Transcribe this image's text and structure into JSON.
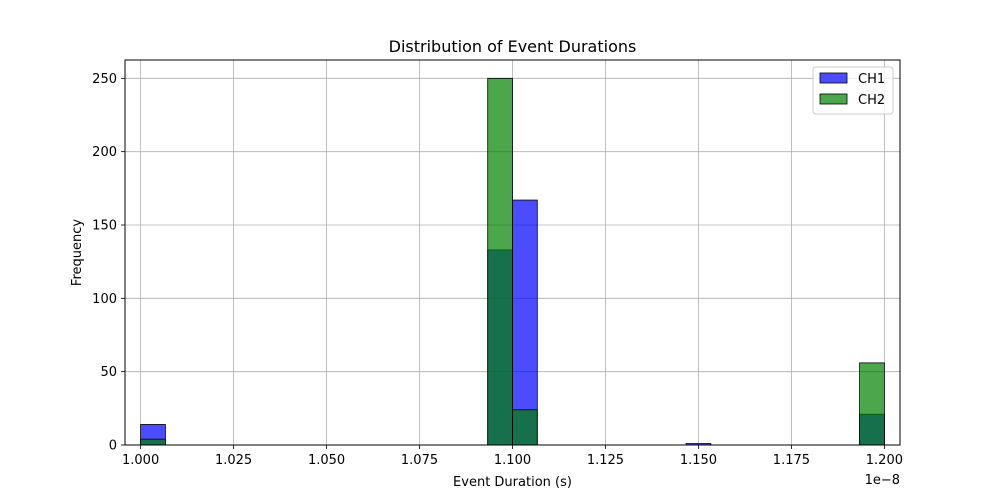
{
  "chart_data": {
    "type": "bar",
    "title": "Distribution of Event Durations",
    "xlabel": "Event Duration (s)",
    "ylabel": "Frequency",
    "x_offset_label": "1e−8",
    "xlim": [
      0.9958,
      1.2042
    ],
    "ylim": [
      0,
      262.5
    ],
    "x_ticks": [
      1.0,
      1.025,
      1.05,
      1.075,
      1.1,
      1.125,
      1.15,
      1.175,
      1.2
    ],
    "x_tick_labels": [
      "1.000",
      "1.025",
      "1.050",
      "1.075",
      "1.100",
      "1.125",
      "1.150",
      "1.175",
      "1.200"
    ],
    "y_ticks": [
      0,
      50,
      100,
      150,
      200,
      250
    ],
    "y_tick_labels": [
      "0",
      "50",
      "100",
      "150",
      "200",
      "250"
    ],
    "grid": true,
    "legend_position": "top-right",
    "series": [
      {
        "name": "CH1",
        "color": "#0000ff",
        "alpha": 0.7,
        "bins": [
          {
            "x0": 1.0,
            "x1": 1.006667,
            "value": 14
          },
          {
            "x0": 1.093333,
            "x1": 1.1,
            "value": 133
          },
          {
            "x0": 1.1,
            "x1": 1.106667,
            "value": 167
          },
          {
            "x0": 1.146667,
            "x1": 1.153333,
            "value": 1
          },
          {
            "x0": 1.193333,
            "x1": 1.2,
            "value": 21
          }
        ]
      },
      {
        "name": "CH2",
        "color": "#008000",
        "alpha": 0.7,
        "bins": [
          {
            "x0": 1.0,
            "x1": 1.006667,
            "value": 4
          },
          {
            "x0": 1.093333,
            "x1": 1.1,
            "value": 250
          },
          {
            "x0": 1.1,
            "x1": 1.106667,
            "value": 24
          },
          {
            "x0": 1.193333,
            "x1": 1.2,
            "value": 56
          }
        ]
      }
    ]
  }
}
